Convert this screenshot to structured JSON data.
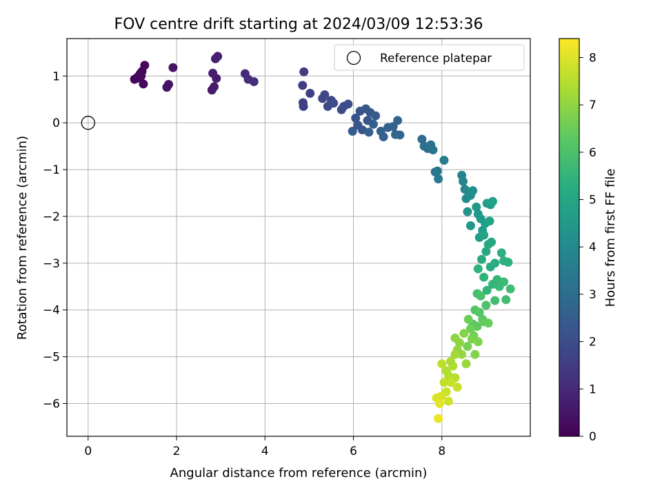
{
  "chart_data": {
    "type": "scatter",
    "title": "FOV centre drift starting at 2024/03/09 12:53:36",
    "xlabel": "Angular distance from reference (arcmin)",
    "ylabel": "Rotation from reference (arcmin)",
    "colorbar_label": "Hours from first FF file",
    "colormap": "viridis",
    "xlim": [
      -0.48,
      10.0
    ],
    "ylim": [
      -6.7,
      1.8
    ],
    "clim": [
      0,
      8.4
    ],
    "x_ticks": [
      0,
      2,
      4,
      6,
      8
    ],
    "y_ticks": [
      1,
      0,
      -1,
      -2,
      -3,
      -4,
      -5,
      -6
    ],
    "c_ticks": [
      0,
      1,
      2,
      3,
      4,
      5,
      6,
      7,
      8
    ],
    "x_tick_labels": [
      "0",
      "2",
      "4",
      "6",
      "8"
    ],
    "y_tick_labels": [
      "1",
      "0",
      "−1",
      "−2",
      "−3",
      "−4",
      "−5",
      "−6"
    ],
    "c_tick_labels": [
      "0",
      "1",
      "2",
      "3",
      "4",
      "5",
      "6",
      "7",
      "8"
    ],
    "grid": true,
    "legend_position": "top-right",
    "reference": {
      "name": "Reference platepar",
      "x": 0,
      "y": 0
    },
    "series": [
      {
        "points": [
          [
            1.05,
            0.93,
            0.05
          ],
          [
            1.12,
            0.98,
            0.08
          ],
          [
            1.18,
            1.05,
            0.1
          ],
          [
            1.22,
            1.1,
            0.12
          ],
          [
            1.28,
            1.23,
            0.15
          ],
          [
            1.25,
            0.83,
            0.18
          ],
          [
            1.1,
            0.95,
            0.2
          ],
          [
            1.2,
            1.0,
            0.22
          ],
          [
            1.78,
            0.76,
            0.4
          ],
          [
            1.82,
            0.82,
            0.42
          ],
          [
            1.92,
            1.18,
            0.45
          ],
          [
            2.8,
            0.7,
            0.6
          ],
          [
            2.85,
            0.77,
            0.62
          ],
          [
            2.9,
            0.95,
            0.65
          ],
          [
            2.82,
            1.06,
            0.68
          ],
          [
            2.88,
            1.37,
            0.7
          ],
          [
            2.93,
            1.42,
            0.72
          ],
          [
            3.55,
            1.05,
            1.0
          ],
          [
            3.62,
            0.93,
            1.05
          ],
          [
            3.75,
            0.88,
            1.1
          ],
          [
            4.88,
            1.09,
            1.5
          ],
          [
            4.85,
            0.8,
            1.55
          ],
          [
            4.86,
            0.43,
            1.6
          ],
          [
            4.87,
            0.35,
            1.62
          ],
          [
            5.02,
            0.63,
            1.65
          ],
          [
            5.3,
            0.52,
            1.8
          ],
          [
            5.35,
            0.6,
            1.82
          ],
          [
            5.42,
            0.35,
            1.85
          ],
          [
            5.5,
            0.48,
            1.88
          ],
          [
            5.55,
            0.42,
            1.9
          ],
          [
            5.73,
            0.28,
            1.95
          ],
          [
            5.78,
            0.35,
            1.98
          ],
          [
            5.88,
            0.4,
            2.0
          ],
          [
            6.05,
            0.1,
            2.2
          ],
          [
            6.1,
            -0.05,
            2.22
          ],
          [
            6.15,
            0.25,
            2.25
          ],
          [
            6.2,
            -0.15,
            2.28
          ],
          [
            6.28,
            0.3,
            2.3
          ],
          [
            6.32,
            0.05,
            2.32
          ],
          [
            6.38,
            0.22,
            2.35
          ],
          [
            6.5,
            0.15,
            2.4
          ],
          [
            5.98,
            -0.18,
            2.45
          ],
          [
            6.45,
            -0.03,
            2.5
          ],
          [
            6.35,
            -0.2,
            2.52
          ],
          [
            6.62,
            -0.18,
            2.55
          ],
          [
            6.68,
            -0.3,
            2.58
          ],
          [
            6.78,
            -0.1,
            2.6
          ],
          [
            6.9,
            -0.08,
            2.65
          ],
          [
            6.95,
            -0.25,
            2.7
          ],
          [
            7.0,
            0.05,
            2.72
          ],
          [
            7.05,
            -0.26,
            2.75
          ],
          [
            7.55,
            -0.35,
            3.0
          ],
          [
            7.6,
            -0.5,
            3.05
          ],
          [
            7.68,
            -0.55,
            3.1
          ],
          [
            7.75,
            -0.47,
            3.15
          ],
          [
            7.8,
            -0.58,
            3.2
          ],
          [
            7.85,
            -1.05,
            3.3
          ],
          [
            7.9,
            -1.03,
            3.35
          ],
          [
            7.92,
            -1.2,
            3.4
          ],
          [
            8.05,
            -0.8,
            3.5
          ],
          [
            8.45,
            -1.12,
            3.8
          ],
          [
            8.48,
            -1.25,
            3.85
          ],
          [
            8.52,
            -1.42,
            3.9
          ],
          [
            8.55,
            -1.62,
            4.0
          ],
          [
            8.6,
            -1.48,
            4.05
          ],
          [
            8.65,
            -1.55,
            4.1
          ],
          [
            8.7,
            -1.45,
            4.15
          ],
          [
            8.58,
            -1.9,
            4.3
          ],
          [
            8.65,
            -2.2,
            4.4
          ],
          [
            8.78,
            -1.8,
            4.45
          ],
          [
            8.82,
            -1.95,
            4.5
          ],
          [
            8.88,
            -2.05,
            4.55
          ],
          [
            8.85,
            -2.45,
            4.6
          ],
          [
            8.92,
            -2.3,
            4.65
          ],
          [
            8.98,
            -2.15,
            4.7
          ],
          [
            9.02,
            -1.72,
            4.7
          ],
          [
            9.1,
            -1.75,
            4.75
          ],
          [
            9.15,
            -1.68,
            4.8
          ],
          [
            9.08,
            -2.1,
            4.85
          ],
          [
            9.12,
            -2.55,
            4.9
          ],
          [
            8.95,
            -2.4,
            4.9
          ],
          [
            9.0,
            -2.75,
            5.0
          ],
          [
            9.05,
            -2.6,
            5.05
          ],
          [
            8.9,
            -2.92,
            5.1
          ],
          [
            9.1,
            -3.08,
            5.15
          ],
          [
            9.2,
            -3.0,
            5.2
          ],
          [
            9.35,
            -2.78,
            5.25
          ],
          [
            9.4,
            -2.95,
            5.3
          ],
          [
            9.5,
            -2.98,
            5.35
          ],
          [
            8.82,
            -3.12,
            5.4
          ],
          [
            8.95,
            -3.3,
            5.45
          ],
          [
            9.02,
            -3.58,
            5.5
          ],
          [
            9.15,
            -3.45,
            5.55
          ],
          [
            9.25,
            -3.35,
            5.6
          ],
          [
            9.3,
            -3.5,
            5.65
          ],
          [
            9.4,
            -3.4,
            5.7
          ],
          [
            9.55,
            -3.55,
            5.75
          ],
          [
            9.45,
            -3.78,
            5.8
          ],
          [
            9.2,
            -3.8,
            5.85
          ],
          [
            8.8,
            -3.65,
            5.9
          ],
          [
            8.88,
            -3.7,
            5.95
          ],
          [
            9.0,
            -3.9,
            6.0
          ],
          [
            8.75,
            -4.0,
            6.1
          ],
          [
            8.85,
            -4.05,
            6.15
          ],
          [
            8.92,
            -4.2,
            6.2
          ],
          [
            8.7,
            -4.3,
            6.25
          ],
          [
            8.8,
            -4.35,
            6.3
          ],
          [
            8.95,
            -4.25,
            6.35
          ],
          [
            9.05,
            -4.28,
            6.4
          ],
          [
            8.6,
            -4.2,
            6.5
          ],
          [
            8.65,
            -4.4,
            6.55
          ],
          [
            8.72,
            -4.55,
            6.6
          ],
          [
            8.58,
            -4.78,
            6.65
          ],
          [
            8.68,
            -4.62,
            6.7
          ],
          [
            8.82,
            -4.68,
            6.75
          ],
          [
            8.75,
            -4.95,
            6.8
          ],
          [
            8.5,
            -4.5,
            6.85
          ],
          [
            8.4,
            -4.7,
            6.9
          ],
          [
            8.3,
            -4.6,
            6.95
          ],
          [
            8.35,
            -4.85,
            7.0
          ],
          [
            8.45,
            -4.95,
            7.05
          ],
          [
            8.55,
            -5.15,
            7.1
          ],
          [
            8.3,
            -4.95,
            7.2
          ],
          [
            8.2,
            -5.1,
            7.3
          ],
          [
            8.25,
            -5.2,
            7.35
          ],
          [
            8.1,
            -5.3,
            7.4
          ],
          [
            8.15,
            -5.4,
            7.45
          ],
          [
            8.3,
            -5.45,
            7.5
          ],
          [
            8.0,
            -5.15,
            7.55
          ],
          [
            8.05,
            -5.55,
            7.6
          ],
          [
            8.2,
            -5.55,
            7.65
          ],
          [
            8.35,
            -5.65,
            7.7
          ],
          [
            8.1,
            -5.75,
            7.75
          ],
          [
            8.15,
            -5.95,
            7.8
          ],
          [
            7.98,
            -5.85,
            7.9
          ],
          [
            7.88,
            -5.88,
            7.95
          ],
          [
            7.95,
            -6.0,
            8.05
          ],
          [
            7.92,
            -6.32,
            8.2
          ]
        ]
      }
    ]
  }
}
